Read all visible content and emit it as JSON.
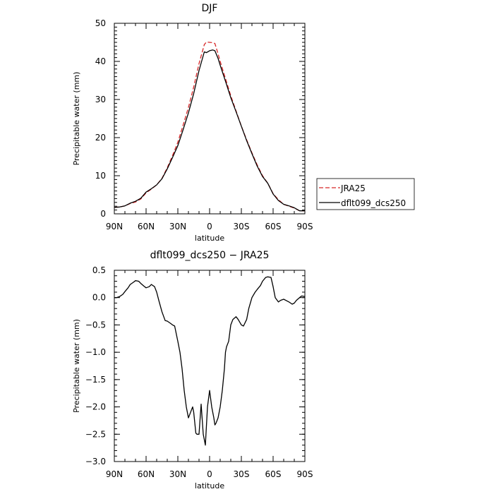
{
  "chart_data": [
    {
      "type": "line",
      "title": "DJF",
      "xlabel": "latitude",
      "ylabel": "Precipitable water (mm)",
      "xlim": [
        90,
        -90
      ],
      "ylim": [
        0,
        50
      ],
      "x_ticks": [
        {
          "value": 90,
          "label": "90N"
        },
        {
          "value": 60,
          "label": "60N"
        },
        {
          "value": 30,
          "label": "30N"
        },
        {
          "value": 0,
          "label": "0"
        },
        {
          "value": -30,
          "label": "30S"
        },
        {
          "value": -60,
          "label": "60S"
        },
        {
          "value": -90,
          "label": "90S"
        }
      ],
      "y_ticks": [
        {
          "value": 0,
          "label": "0"
        },
        {
          "value": 10,
          "label": "10"
        },
        {
          "value": 20,
          "label": "20"
        },
        {
          "value": 30,
          "label": "30"
        },
        {
          "value": 40,
          "label": "40"
        },
        {
          "value": 50,
          "label": "50"
        }
      ],
      "legend_position": "right",
      "series": [
        {
          "name": "JRA25",
          "color": "#d62728",
          "style": "dashed",
          "x": [
            90,
            85,
            80,
            75,
            70,
            65,
            60,
            55,
            50,
            45,
            40,
            35,
            30,
            25,
            20,
            15,
            10,
            5,
            3,
            0,
            -3,
            -5,
            -8,
            -10,
            -15,
            -20,
            -25,
            -30,
            -35,
            -40,
            -45,
            -50,
            -55,
            -60,
            -65,
            -70,
            -75,
            -80,
            -85,
            -90
          ],
          "y": [
            1.7,
            1.8,
            2.1,
            2.7,
            3.1,
            3.9,
            5.5,
            6.5,
            7.6,
            9.3,
            12.1,
            15.3,
            18.8,
            23.3,
            27.9,
            33.3,
            39.4,
            44.4,
            45.1,
            45.0,
            44.9,
            44.7,
            42.0,
            40.0,
            35.5,
            31.0,
            27.0,
            23.0,
            19.4,
            16.0,
            12.8,
            10.0,
            8.0,
            5.3,
            3.7,
            2.5,
            2.0,
            1.5,
            0.8,
            0.8
          ]
        },
        {
          "name": "dflt099_dcs250",
          "color": "#000000",
          "style": "solid",
          "x": [
            90,
            85,
            80,
            75,
            70,
            65,
            60,
            55,
            50,
            45,
            40,
            35,
            30,
            25,
            20,
            15,
            10,
            5,
            3,
            0,
            -3,
            -5,
            -8,
            -10,
            -15,
            -20,
            -25,
            -30,
            -35,
            -40,
            -45,
            -50,
            -55,
            -60,
            -65,
            -70,
            -75,
            -80,
            -85,
            -90
          ],
          "y": [
            1.7,
            1.8,
            2.1,
            2.8,
            3.3,
            4.1,
            5.7,
            6.6,
            7.6,
            9.2,
            11.8,
            14.8,
            17.9,
            22.1,
            26.5,
            31.6,
            37.6,
            42.5,
            42.3,
            42.8,
            43.0,
            42.8,
            40.8,
            39.0,
            34.8,
            30.5,
            26.8,
            23.0,
            19.2,
            15.8,
            12.5,
            9.8,
            8.0,
            5.2,
            3.5,
            2.5,
            2.1,
            1.6,
            0.8,
            0.8
          ]
        }
      ]
    },
    {
      "type": "line",
      "title": "dflt099_dcs250 − JRA25",
      "xlabel": "latitude",
      "ylabel": "Precipitable water (mm)",
      "xlim": [
        90,
        -90
      ],
      "ylim": [
        -3.0,
        0.5
      ],
      "x_ticks": [
        {
          "value": 90,
          "label": "90N"
        },
        {
          "value": 60,
          "label": "60N"
        },
        {
          "value": 30,
          "label": "30N"
        },
        {
          "value": 0,
          "label": "0"
        },
        {
          "value": -30,
          "label": "30S"
        },
        {
          "value": -60,
          "label": "60S"
        },
        {
          "value": -90,
          "label": "90S"
        }
      ],
      "y_ticks": [
        {
          "value": 0.5,
          "label": "0.5"
        },
        {
          "value": 0.0,
          "label": "0.0"
        },
        {
          "value": -0.5,
          "label": "−0.5"
        },
        {
          "value": -1.0,
          "label": "−1.0"
        },
        {
          "value": -1.5,
          "label": "−1.5"
        },
        {
          "value": -2.0,
          "label": "−2.0"
        },
        {
          "value": -2.5,
          "label": "−2.5"
        },
        {
          "value": -3.0,
          "label": "−3.0"
        }
      ],
      "series": [
        {
          "color": "#000000",
          "style": "solid",
          "x": [
            90,
            88,
            85,
            82,
            80,
            77,
            75,
            72,
            70,
            67,
            65,
            62,
            60,
            57,
            55,
            52,
            50,
            48,
            45,
            42,
            40,
            37,
            35,
            33,
            30,
            28,
            26,
            25,
            24,
            22,
            20,
            18,
            17,
            16,
            15,
            13,
            12,
            10,
            8,
            6,
            5,
            4,
            2,
            0,
            -2,
            -4,
            -5,
            -6,
            -8,
            -10,
            -12,
            -14,
            -15,
            -16,
            -18,
            -20,
            -22,
            -25,
            -27,
            -30,
            -32,
            -35,
            -37,
            -40,
            -43,
            -45,
            -48,
            -50,
            -53,
            -55,
            -58,
            -60,
            -62,
            -65,
            -67,
            -70,
            -72,
            -75,
            -78,
            -80,
            -82,
            -85,
            -87,
            -90
          ],
          "y": [
            0.0,
            0.0,
            0.02,
            0.06,
            0.11,
            0.18,
            0.24,
            0.28,
            0.31,
            0.3,
            0.26,
            0.21,
            0.18,
            0.2,
            0.24,
            0.2,
            0.1,
            -0.05,
            -0.26,
            -0.42,
            -0.43,
            -0.47,
            -0.5,
            -0.52,
            -0.8,
            -1.0,
            -1.3,
            -1.5,
            -1.7,
            -2.0,
            -2.2,
            -2.1,
            -2.05,
            -2.0,
            -2.1,
            -2.48,
            -2.5,
            -2.5,
            -1.95,
            -2.5,
            -2.6,
            -2.7,
            -2.0,
            -1.7,
            -2.0,
            -2.2,
            -2.33,
            -2.3,
            -2.2,
            -2.0,
            -1.7,
            -1.3,
            -1.0,
            -0.9,
            -0.8,
            -0.5,
            -0.4,
            -0.35,
            -0.4,
            -0.5,
            -0.52,
            -0.4,
            -0.2,
            0.0,
            0.1,
            0.15,
            0.22,
            0.3,
            0.37,
            0.38,
            0.37,
            0.2,
            0.0,
            -0.08,
            -0.05,
            -0.03,
            -0.05,
            -0.08,
            -0.12,
            -0.1,
            -0.05,
            0.0,
            0.03,
            0.02
          ]
        }
      ]
    }
  ]
}
